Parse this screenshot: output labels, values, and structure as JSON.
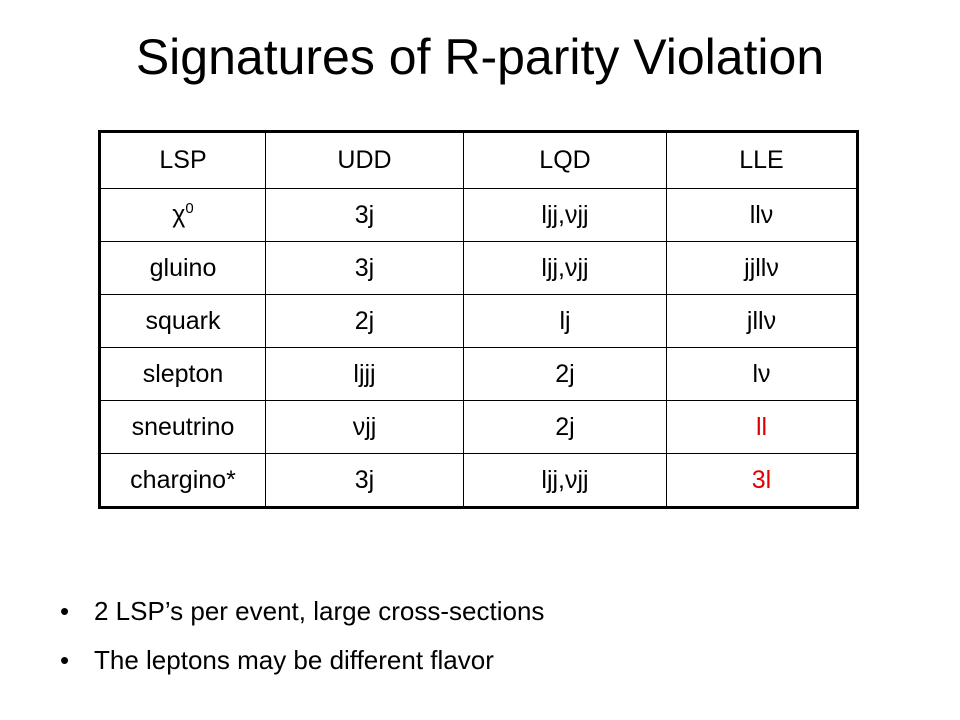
{
  "title": "Signatures of R-parity Violation",
  "table": {
    "header": [
      "LSP",
      "UDD",
      "LQD",
      "LLE"
    ],
    "rows": [
      [
        {
          "base": "χ",
          "sup": "0"
        },
        "3j",
        "ljj,νjj",
        "llν"
      ],
      [
        "gluino",
        "3j",
        "ljj,νjj",
        "jjllν"
      ],
      [
        "squark",
        "2j",
        "lj",
        "jllν"
      ],
      [
        "slepton",
        "ljjj",
        "2j",
        "lν"
      ],
      [
        "sneutrino",
        "νjj",
        "2j",
        "ll"
      ],
      [
        "chargino*",
        "3j",
        "ljj,νjj",
        "3l"
      ]
    ]
  },
  "bullets": [
    "2 LSP’s per event, large cross-sections",
    "The leptons may be different flavor"
  ]
}
